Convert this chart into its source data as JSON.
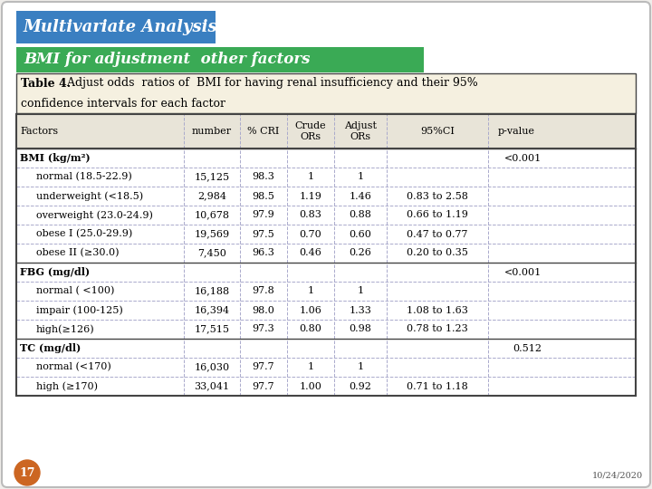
{
  "title1": "Multivariate Analysis",
  "title2": "BMI for adjustment  other factors",
  "col_headers": [
    "Factors",
    "number",
    "% CRI",
    "Crude\nORs",
    "Adjust\nORs",
    "95%CI",
    "p-value"
  ],
  "rows": [
    [
      "BMI (kg/m²)",
      "",
      "",
      "",
      "",
      "",
      "<0.001"
    ],
    [
      "normal (18.5-22.9)",
      "15,125",
      "98.3",
      "1",
      "1",
      "",
      ""
    ],
    [
      "underweight (<18.5)",
      "2,984",
      "98.5",
      "1.19",
      "1.46",
      "0.83 to 2.58",
      ""
    ],
    [
      "overweight (23.0-24.9)",
      "10,678",
      "97.9",
      "0.83",
      "0.88",
      "0.66 to 1.19",
      ""
    ],
    [
      "obese I (25.0-29.9)",
      "19,569",
      "97.5",
      "0.70",
      "0.60",
      "0.47 to 0.77",
      ""
    ],
    [
      "obese II (≥30.0)",
      "7,450",
      "96.3",
      "0.46",
      "0.26",
      "0.20 to 0.35",
      ""
    ],
    [
      "FBG (mg/dl)",
      "",
      "",
      "",
      "",
      "",
      "<0.001"
    ],
    [
      "normal ( <100)",
      "16,188",
      "97.8",
      "1",
      "1",
      "",
      ""
    ],
    [
      "impair (100-125)",
      "16,394",
      "98.0",
      "1.06",
      "1.33",
      "1.08 to 1.63",
      ""
    ],
    [
      "high(≥126)",
      "17,515",
      "97.3",
      "0.80",
      "0.98",
      "0.78 to 1.23",
      ""
    ],
    [
      "TC (mg/dl)",
      "",
      "",
      "",
      "",
      "",
      "0.512"
    ],
    [
      "normal (<170)",
      "16,030",
      "97.7",
      "1",
      "1",
      "",
      ""
    ],
    [
      "high (≥170)",
      "33,041",
      "97.7",
      "1.00",
      "0.92",
      "0.71 to 1.18",
      ""
    ]
  ],
  "category_rows": [
    0,
    6,
    10
  ],
  "indented_rows": [
    1,
    2,
    3,
    4,
    5,
    7,
    8,
    9,
    11,
    12
  ],
  "slide_bg": "#f0eeeb",
  "white_bg": "#ffffff",
  "title1_bg": "#3a7fc1",
  "title2_bg": "#3aaa55",
  "caption_bg": "#f5f0e0",
  "table_header_bg": "#e8e4d8",
  "border_color": "#888888",
  "solid_border": "#444444",
  "dashed_color": "#aaaacc",
  "circle_color": "#cc6622",
  "date_text": "10/24/2020",
  "slide_num": "17",
  "font_family": "serif"
}
